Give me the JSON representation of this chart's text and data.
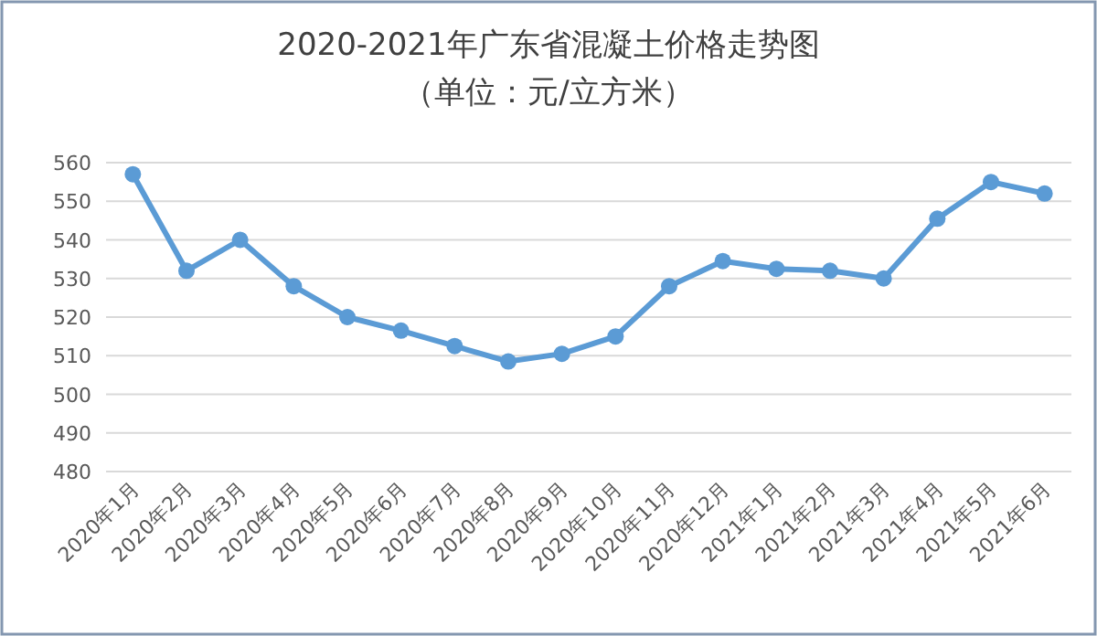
{
  "chart_data": {
    "type": "line",
    "title": "2020-2021年广东省混凝土价格走势图",
    "subtitle": "（单位：元/立方米）",
    "categories": [
      "2020年1月",
      "2020年2月",
      "2020年3月",
      "2020年4月",
      "2020年5月",
      "2020年6月",
      "2020年7月",
      "2020年8月",
      "2020年9月",
      "2020年10月",
      "2020年11月",
      "2020年12月",
      "2021年1月",
      "2021年2月",
      "2021年3月",
      "2021年4月",
      "2021年5月",
      "2021年6月"
    ],
    "series": [
      {
        "color": "#5b9bd5",
        "values": [
          557,
          532,
          540,
          528,
          520,
          516.5,
          512.5,
          508.5,
          510.5,
          515,
          528,
          534.5,
          532.5,
          532,
          530,
          545.5,
          555,
          552
        ]
      }
    ],
    "ylim": [
      480,
      560
    ],
    "yticks": [
      480,
      490,
      500,
      510,
      520,
      530,
      540,
      550,
      560
    ],
    "grid": "y",
    "marker": "circle",
    "line_style": "solid"
  }
}
